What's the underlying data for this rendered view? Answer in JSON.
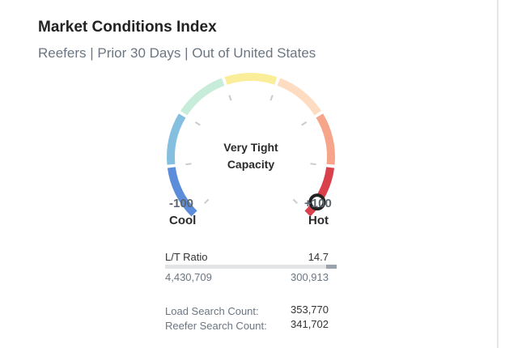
{
  "card": {
    "title": "Market Conditions Index",
    "subtitle": "Reefers | Prior 30 Days | Out of United States"
  },
  "gauge": {
    "status_line1": "Very Tight",
    "status_line2": "Capacity",
    "min_value": "-100",
    "max_value": "+100",
    "min_label": "Cool",
    "max_label": "Hot",
    "level_fraction": 0.96,
    "segment_colors": [
      "#5b8ddb",
      "#84bfe0",
      "#c7ecd9",
      "#fbee9b",
      "#fddcc1",
      "#f6a48a",
      "#d9404c"
    ]
  },
  "ratio": {
    "label": "L/T Ratio",
    "value": "14.7",
    "loads": "4,430,709",
    "trucks": "300,913",
    "fill_fraction": 0.06
  },
  "stats": [
    {
      "label": "Load Search Count:",
      "value": "353,770"
    },
    {
      "label": "Reefer Search Count:",
      "value": "341,702"
    }
  ]
}
